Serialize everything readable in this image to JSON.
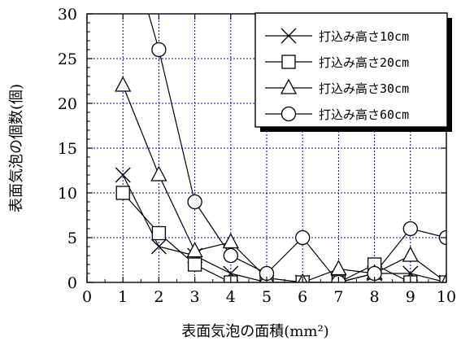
{
  "chart_data": {
    "type": "line",
    "xlabel": "表面気泡の面積(mm²)",
    "ylabel": "表面気泡の個数(個)",
    "xlim": [
      0,
      10
    ],
    "ylim": [
      0,
      30
    ],
    "xticks": [
      0,
      1,
      2,
      3,
      4,
      5,
      6,
      7,
      8,
      9,
      10
    ],
    "yticks": [
      0,
      5,
      10,
      15,
      20,
      25,
      30
    ],
    "grid": true,
    "legend_position": "top-right",
    "x": [
      1,
      2,
      3,
      4,
      5,
      6,
      7,
      8,
      9,
      10
    ],
    "series": [
      {
        "name": "打込み高さ10cm",
        "marker": "x",
        "values": [
          12,
          4,
          3,
          1,
          0,
          0,
          0,
          1,
          1,
          0
        ]
      },
      {
        "name": "打込み高さ20cm",
        "marker": "square",
        "values": [
          10,
          5.5,
          2,
          0,
          0,
          0,
          0,
          2,
          0,
          0
        ]
      },
      {
        "name": "打込み高さ30cm",
        "marker": "triangle",
        "values": [
          22,
          12,
          3.5,
          4.5,
          0.5,
          0,
          1.5,
          1,
          3,
          0
        ]
      },
      {
        "name": "打込み高さ60cm",
        "marker": "circle",
        "values": [
          40,
          26,
          9,
          3,
          1,
          5,
          0,
          1,
          6,
          5
        ]
      }
    ]
  }
}
